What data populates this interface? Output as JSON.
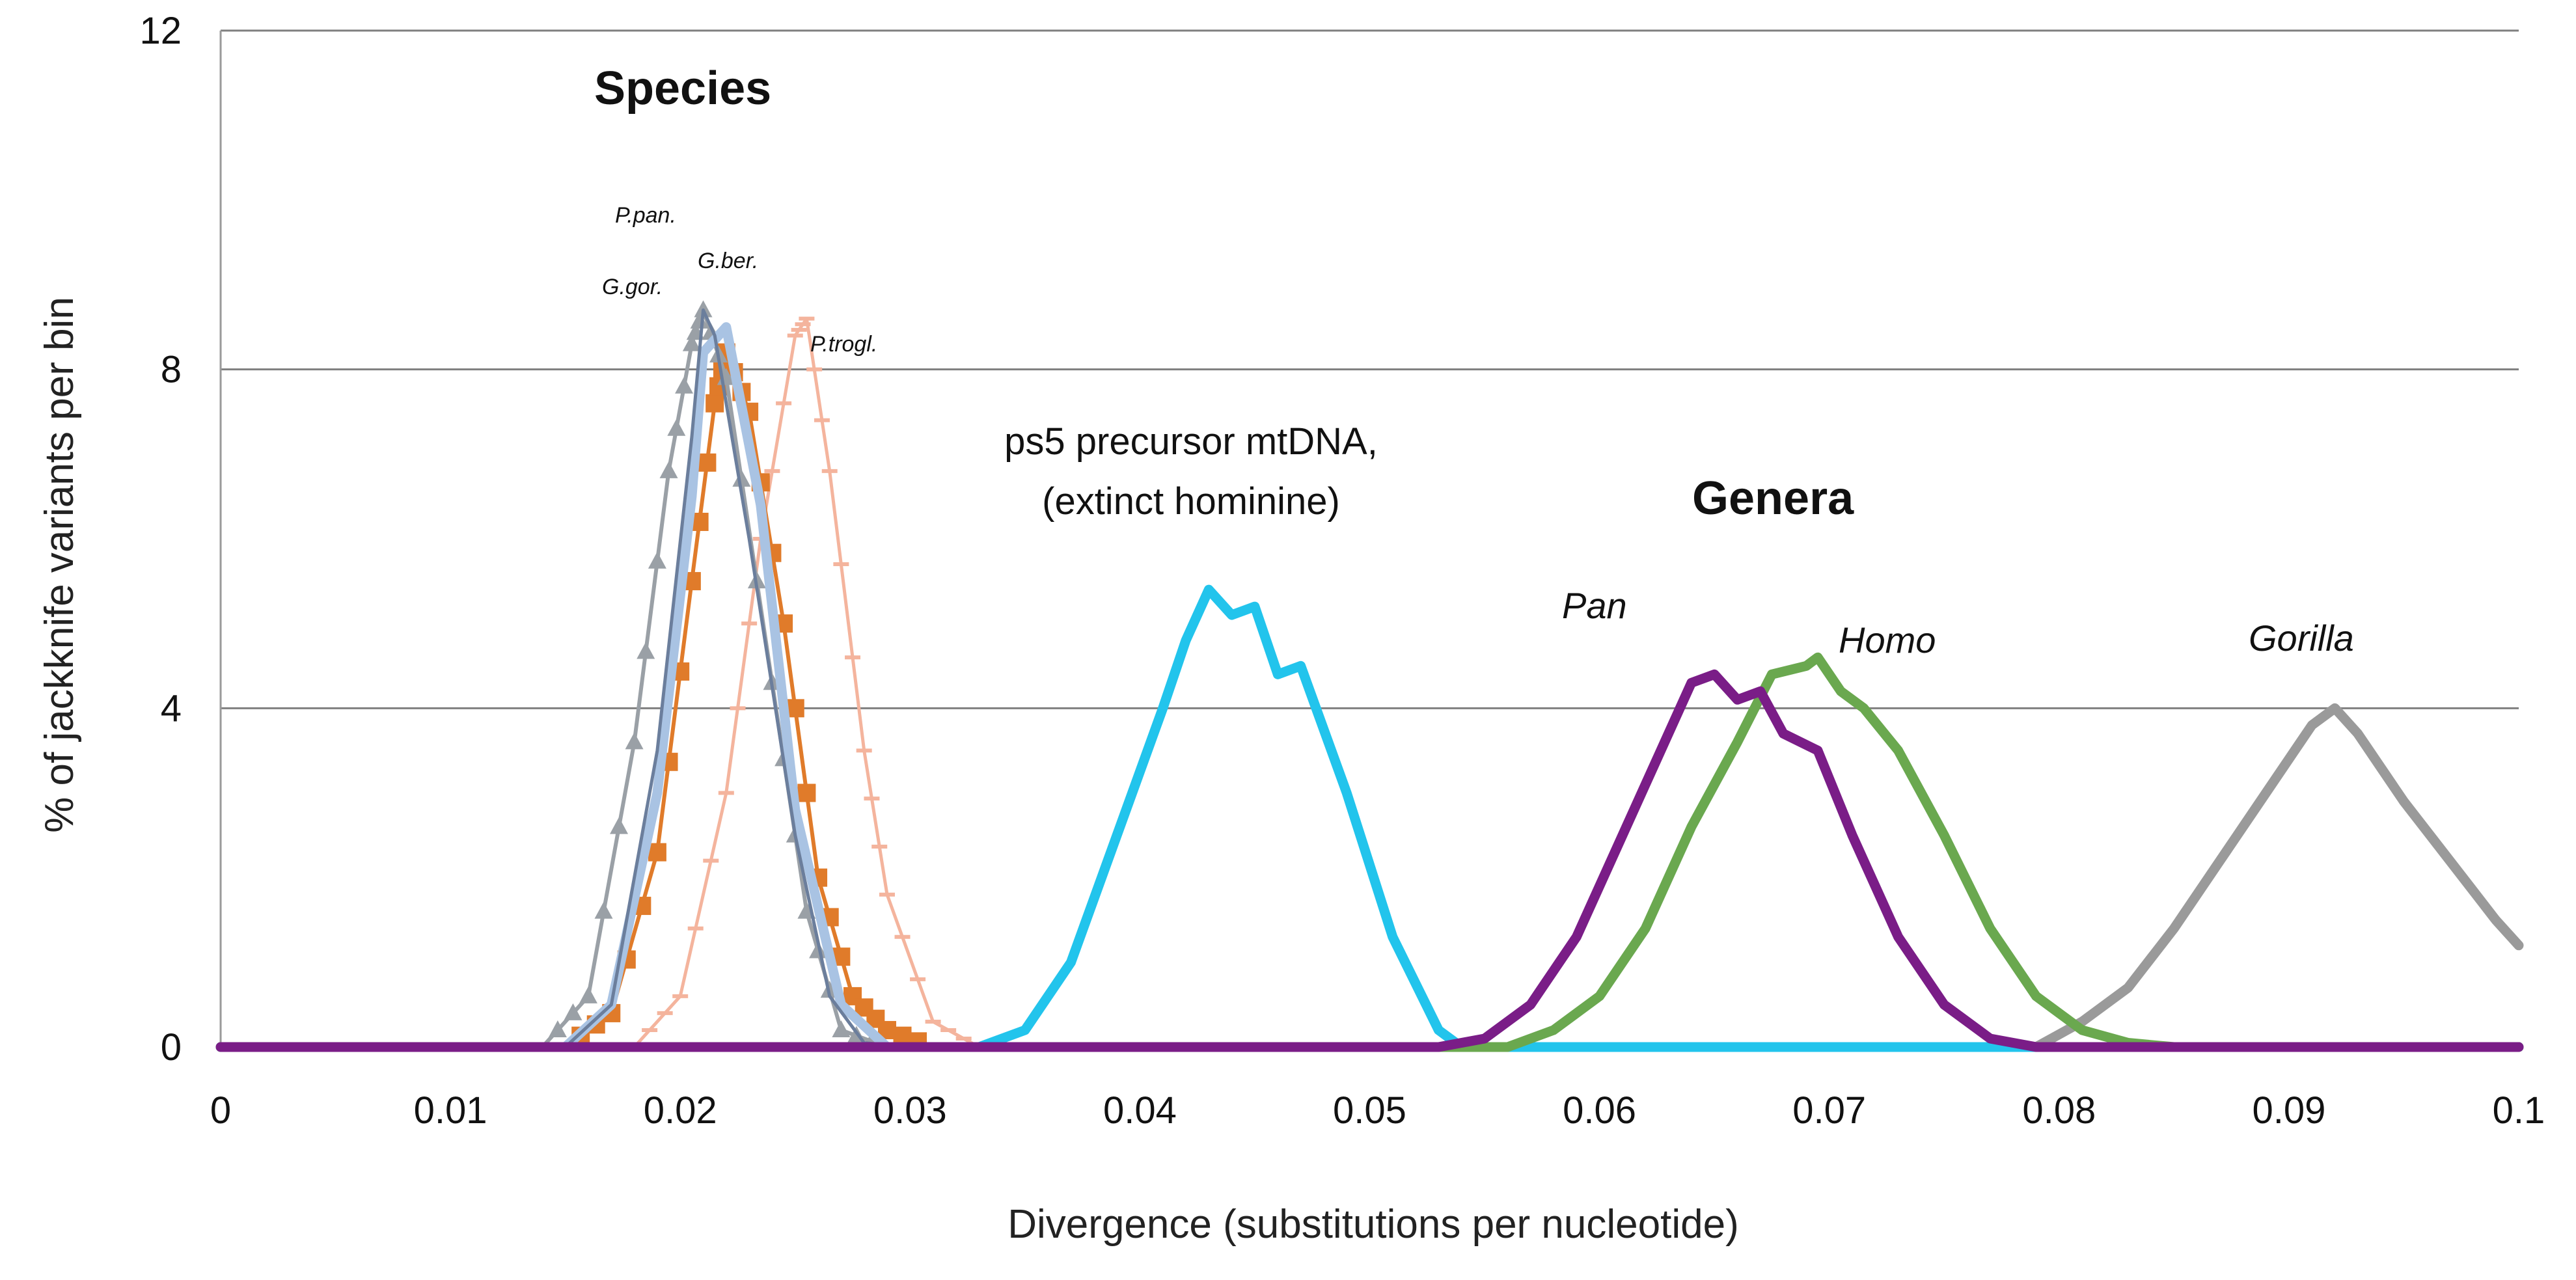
{
  "chart_data": {
    "type": "line",
    "xlabel": "Divergence (substitutions per nucleotide)",
    "ylabel": "% of jackknife variants per bin",
    "xlim": [
      0,
      0.1
    ],
    "ylim": [
      0,
      12
    ],
    "x_ticks": [
      "0",
      "0.01",
      "0.02",
      "0.03",
      "0.04",
      "0.05",
      "0.06",
      "0.07",
      "0.08",
      "0.09",
      "0.1"
    ],
    "y_ticks": [
      "0",
      "4",
      "8",
      "12"
    ],
    "gridlines": "horizontal",
    "group_labels": {
      "species": "Species",
      "genera": "Genera"
    },
    "annotations": {
      "ps5_line1": "ps5 precursor mtDNA,",
      "ps5_line2": "(extinct hominine)"
    },
    "series": [
      {
        "name": "P.pan.",
        "color": "#6b7e9c",
        "style": "thin",
        "x": [
          0,
          0.015,
          0.017,
          0.019,
          0.0205,
          0.021,
          0.0215,
          0.023,
          0.025,
          0.0265,
          0.028,
          0.03,
          0.1
        ],
        "y": [
          0,
          0,
          0.5,
          3.5,
          7.2,
          8.7,
          8.4,
          6.0,
          2.5,
          0.6,
          0.05,
          0,
          0
        ]
      },
      {
        "name": "G.gor.",
        "color": "#9aa0a6",
        "style": "triangles",
        "x": [
          0,
          0.014,
          0.016,
          0.018,
          0.0195,
          0.0205,
          0.021,
          0.022,
          0.024,
          0.0255,
          0.027,
          0.029,
          0.1
        ],
        "y": [
          0,
          0,
          0.6,
          3.6,
          6.8,
          8.3,
          8.7,
          7.9,
          4.3,
          1.6,
          0.2,
          0,
          0
        ]
      },
      {
        "name": "G.ber.",
        "color": "#a9c3e3",
        "style": "thick",
        "x": [
          0,
          0.015,
          0.017,
          0.019,
          0.0205,
          0.021,
          0.022,
          0.0235,
          0.025,
          0.027,
          0.029,
          0.1
        ],
        "y": [
          0,
          0,
          0.5,
          3.0,
          6.5,
          8.2,
          8.5,
          6.4,
          2.8,
          0.5,
          0,
          0
        ]
      },
      {
        "name": "P.trogl.",
        "color": "#f4b49d",
        "style": "thin-ticks",
        "x": [
          0,
          0.018,
          0.02,
          0.022,
          0.0235,
          0.025,
          0.0255,
          0.0265,
          0.028,
          0.029,
          0.031,
          0.033,
          0.1
        ],
        "y": [
          0,
          0,
          0.6,
          3.0,
          6.0,
          8.4,
          8.6,
          6.8,
          3.5,
          1.8,
          0.3,
          0,
          0
        ]
      },
      {
        "name": "",
        "color": "#e07b2a",
        "style": "squares",
        "x": [
          0,
          0.015,
          0.017,
          0.019,
          0.0205,
          0.0215,
          0.022,
          0.023,
          0.0245,
          0.026,
          0.0275,
          0.029,
          0.031,
          0.1
        ],
        "y": [
          0,
          0,
          0.4,
          2.3,
          5.5,
          7.6,
          8.2,
          7.5,
          5.0,
          2.0,
          0.6,
          0.2,
          0,
          0
        ]
      },
      {
        "name": "ps5 precursor mtDNA",
        "color": "#22c4ec",
        "style": "thick",
        "x": [
          0,
          0.033,
          0.035,
          0.037,
          0.039,
          0.041,
          0.042,
          0.043,
          0.044,
          0.045,
          0.046,
          0.047,
          0.049,
          0.051,
          0.053,
          0.054,
          0.1
        ],
        "y": [
          0,
          0,
          0.2,
          1.0,
          2.5,
          4.0,
          4.8,
          5.4,
          5.1,
          5.2,
          4.4,
          4.5,
          3.0,
          1.3,
          0.2,
          0,
          0
        ]
      },
      {
        "name": "Pan",
        "color": "#7a1d87",
        "style": "thick",
        "x": [
          0,
          0.053,
          0.055,
          0.057,
          0.059,
          0.061,
          0.0625,
          0.064,
          0.065,
          0.066,
          0.067,
          0.068,
          0.0695,
          0.071,
          0.073,
          0.075,
          0.077,
          0.079,
          0.08,
          0.1
        ],
        "y": [
          0,
          0,
          0.1,
          0.5,
          1.3,
          2.5,
          3.4,
          4.3,
          4.4,
          4.1,
          4.2,
          3.7,
          3.5,
          2.5,
          1.3,
          0.5,
          0.1,
          0,
          0,
          0
        ]
      },
      {
        "name": "Homo",
        "color": "#6aa84f",
        "style": "thick",
        "x": [
          0,
          0.056,
          0.058,
          0.06,
          0.062,
          0.064,
          0.066,
          0.0675,
          0.069,
          0.0695,
          0.0705,
          0.0715,
          0.073,
          0.075,
          0.077,
          0.079,
          0.081,
          0.083,
          0.085,
          0.1
        ],
        "y": [
          0,
          0,
          0.2,
          0.6,
          1.4,
          2.6,
          3.6,
          4.4,
          4.5,
          4.6,
          4.2,
          4.0,
          3.5,
          2.5,
          1.4,
          0.6,
          0.2,
          0.05,
          0,
          0
        ]
      },
      {
        "name": "Gorilla",
        "color": "#9a9a9a",
        "style": "thick",
        "x": [
          0,
          0.079,
          0.081,
          0.083,
          0.085,
          0.087,
          0.089,
          0.09,
          0.091,
          0.092,
          0.093,
          0.094,
          0.095,
          0.097,
          0.099,
          0.1
        ],
        "y": [
          0,
          0,
          0.3,
          0.7,
          1.4,
          2.2,
          3.0,
          3.4,
          3.8,
          4.0,
          3.7,
          3.3,
          2.9,
          2.2,
          1.5,
          1.2
        ]
      }
    ]
  }
}
